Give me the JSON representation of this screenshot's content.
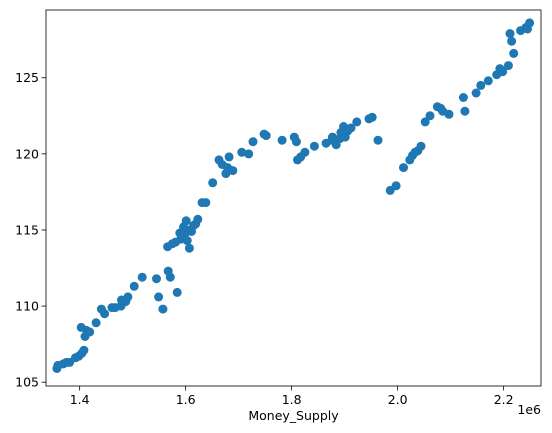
{
  "chart_data": {
    "type": "scatter",
    "xlabel": "Money_Supply",
    "ylabel": "",
    "x_offset_label": "1e6",
    "xlim": [
      1.3365,
      2.2705
    ],
    "ylim": [
      104.75,
      129.45
    ],
    "x_ticks": [
      1.4,
      1.6,
      1.8,
      2.0,
      2.2
    ],
    "x_tick_labels": [
      "1.4",
      "1.6",
      "1.8",
      "2.0",
      "2.2"
    ],
    "y_ticks": [
      105,
      110,
      115,
      120,
      125
    ],
    "y_tick_labels": [
      "105",
      "110",
      "115",
      "120",
      "125"
    ],
    "grid": false,
    "marker_color": "#1f77b4",
    "x": [
      1.357,
      1.359,
      1.369,
      1.375,
      1.381,
      1.392,
      1.398,
      1.404,
      1.408,
      1.41,
      1.403,
      1.413,
      1.419,
      1.431,
      1.441,
      1.447,
      1.461,
      1.467,
      1.478,
      1.479,
      1.487,
      1.491,
      1.503,
      1.518,
      1.545,
      1.549,
      1.557,
      1.566,
      1.567,
      1.571,
      1.575,
      1.581,
      1.584,
      1.589,
      1.591,
      1.596,
      1.598,
      1.601,
      1.603,
      1.607,
      1.611,
      1.615,
      1.619,
      1.608,
      1.623,
      1.631,
      1.638,
      1.651,
      1.663,
      1.669,
      1.676,
      1.679,
      1.682,
      1.689,
      1.706,
      1.719,
      1.727,
      1.748,
      1.752,
      1.782,
      1.805,
      1.809,
      1.811,
      1.817,
      1.825,
      1.843,
      1.865,
      1.876,
      1.877,
      1.884,
      1.891,
      1.893,
      1.898,
      1.901,
      1.906,
      1.912,
      1.923,
      1.946,
      1.952,
      1.963,
      1.986,
      1.997,
      2.011,
      2.023,
      2.028,
      2.033,
      2.038,
      2.044,
      2.052,
      2.061,
      2.075,
      2.081,
      2.085,
      2.097,
      2.124,
      2.127,
      2.148,
      2.157,
      2.171,
      2.187,
      2.193,
      2.198,
      2.209,
      2.212,
      2.215,
      2.219,
      2.232,
      2.242,
      2.245,
      2.249
    ],
    "y": [
      105.9,
      106.1,
      106.2,
      106.3,
      106.3,
      106.6,
      106.7,
      106.9,
      107.1,
      108.0,
      108.6,
      108.4,
      108.3,
      108.9,
      109.8,
      109.5,
      109.9,
      109.9,
      110.0,
      110.4,
      110.3,
      110.6,
      111.3,
      111.9,
      111.8,
      110.6,
      109.8,
      113.9,
      112.3,
      111.9,
      114.1,
      114.2,
      110.9,
      114.8,
      114.4,
      115.2,
      114.7,
      115.6,
      114.3,
      113.8,
      114.9,
      115.3,
      115.4,
      115.0,
      115.7,
      116.8,
      116.8,
      118.1,
      119.6,
      119.3,
      118.7,
      119.1,
      119.8,
      118.9,
      120.1,
      120.0,
      120.8,
      121.3,
      121.2,
      120.9,
      121.1,
      120.8,
      119.6,
      119.8,
      120.1,
      120.5,
      120.7,
      120.9,
      121.1,
      120.6,
      121.0,
      121.4,
      121.8,
      121.1,
      121.5,
      121.7,
      122.1,
      122.3,
      122.4,
      120.9,
      117.6,
      117.9,
      119.1,
      119.6,
      119.9,
      120.1,
      120.2,
      120.5,
      122.1,
      122.5,
      123.1,
      123.0,
      122.8,
      122.6,
      123.7,
      122.8,
      124.0,
      124.5,
      124.8,
      125.2,
      125.6,
      125.4,
      125.8,
      127.9,
      127.4,
      126.6,
      128.1,
      128.3,
      128.2,
      128.6
    ]
  }
}
